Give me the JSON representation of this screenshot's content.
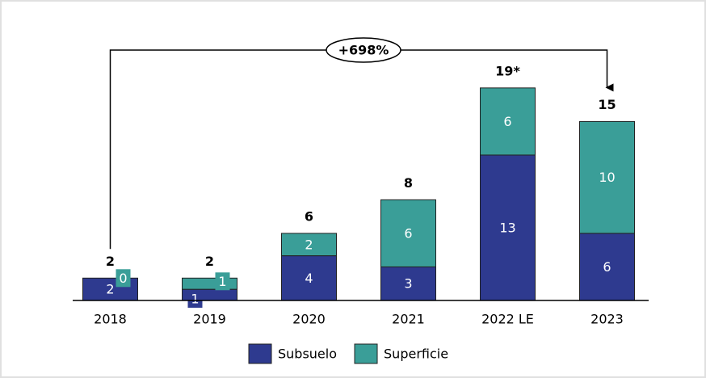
{
  "chart_data": {
    "type": "stacked_bar",
    "categories": [
      "2018",
      "2019",
      "2020",
      "2021",
      "2022 LE",
      "2023"
    ],
    "series": [
      {
        "name": "Subsuelo",
        "color": "#2e3a8f",
        "values": [
          2,
          1,
          4,
          3,
          13,
          6
        ]
      },
      {
        "name": "Superficie",
        "color": "#3a9e98",
        "values": [
          0,
          1,
          2,
          6,
          6,
          10
        ]
      }
    ],
    "total_labels": [
      "2",
      "2",
      "6",
      "8",
      "19*",
      "15"
    ],
    "annotation": "+698%",
    "ylim": [
      0,
      20
    ],
    "legend": "bottom"
  }
}
